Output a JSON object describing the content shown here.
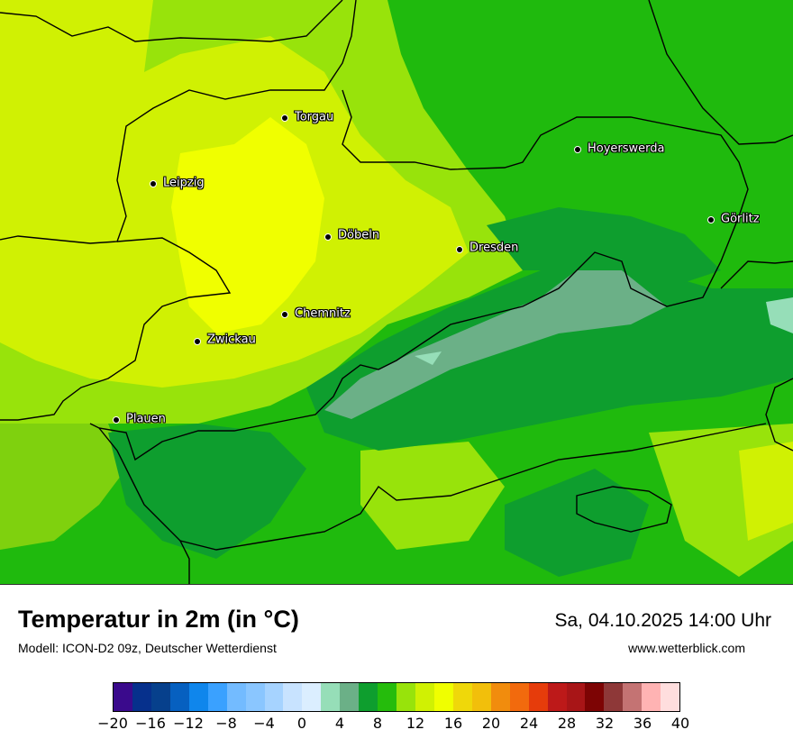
{
  "title": "Temperatur in 2m (in °C)",
  "model": "Modell: ICON-D2 09z, Deutscher Wetterdienst",
  "datetime": "Sa, 04.10.2025 14:00 Uhr",
  "website": "www.wetterblick.com",
  "cities": [
    {
      "name": "Torgau"
    },
    {
      "name": "Hoyerswerda"
    },
    {
      "name": "Leipzig"
    },
    {
      "name": "Döbeln"
    },
    {
      "name": "Görlitz"
    },
    {
      "name": "Dresden"
    },
    {
      "name": "Chemnitz"
    },
    {
      "name": "Zwickau"
    },
    {
      "name": "Plauen"
    }
  ],
  "legend": {
    "ticks": [
      "−20",
      "−16",
      "−12",
      "−8",
      "−4",
      "0",
      "4",
      "8",
      "12",
      "16",
      "20",
      "24",
      "28",
      "32",
      "36",
      "40"
    ],
    "colors": [
      "#3a0a8c",
      "#06308c",
      "#06408c",
      "#0660c0",
      "#0f86ec",
      "#3aa1ff",
      "#73bbff",
      "#8ac6ff",
      "#a6d3ff",
      "#c8e3ff",
      "#dbeeff",
      "#96deb8",
      "#6bb087",
      "#0e9e2e",
      "#25bc0c",
      "#98e30b",
      "#d0f103",
      "#f0ff00",
      "#efd80a",
      "#f2bf0b",
      "#f18c0d",
      "#f26a0d",
      "#e63c0b",
      "#bd1919",
      "#a81517",
      "#7d0404",
      "#8e3838",
      "#c47373",
      "#ffb3b3",
      "#ffdede"
    ]
  }
}
